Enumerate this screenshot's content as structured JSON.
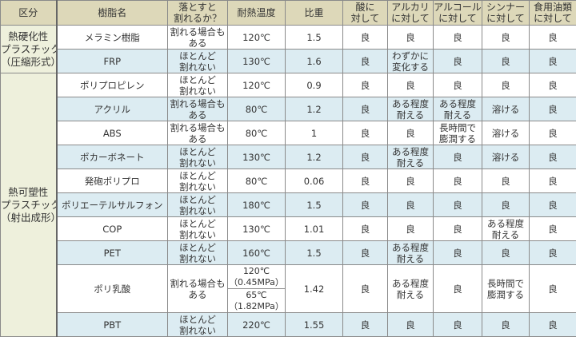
{
  "colors": {
    "header_bg": "#ddd8b9",
    "category_bg": "#eef0dc",
    "alt_row_bg": "#dcecf2",
    "row_bg": "#ffffff"
  },
  "headers": [
    [
      "区分"
    ],
    [
      "樹脂名"
    ],
    [
      "落とすと",
      "割れるか？"
    ],
    [
      "耐熱温度"
    ],
    [
      "比重"
    ],
    [
      "酸に",
      "対して"
    ],
    [
      "アルカリ",
      "に対して"
    ],
    [
      "アルコール",
      "に対して"
    ],
    [
      "シンナー",
      "に対して"
    ],
    [
      "食用油類",
      "に対して"
    ]
  ],
  "categories": [
    {
      "label": [
        "熱硬化性",
        "プラスチック",
        "（圧縮形式）"
      ]
    },
    {
      "label": [
        "熱可塑性",
        "プラスチック",
        "（射出成形）"
      ]
    }
  ],
  "rows": [
    {
      "cat": 0,
      "name": "メラミン樹脂",
      "drop": [
        "割れる場合も",
        "ある"
      ],
      "temp": [
        [
          "120℃"
        ]
      ],
      "sg": "1.5",
      "acid": [
        "良"
      ],
      "alkali": [
        "良"
      ],
      "alcohol": [
        "良"
      ],
      "thinner": [
        "良"
      ],
      "oil": [
        "良"
      ]
    },
    {
      "cat": 0,
      "name": "FRP",
      "drop": [
        "ほとんど",
        "割れない"
      ],
      "temp": [
        [
          "130℃"
        ]
      ],
      "sg": "1.6",
      "acid": [
        "良"
      ],
      "alkali": [
        "わずかに",
        "変化する"
      ],
      "alcohol": [
        "良"
      ],
      "thinner": [
        "良"
      ],
      "oil": [
        "良"
      ]
    },
    {
      "cat": 1,
      "name": "ポリプロピレン",
      "drop": [
        "ほとんど",
        "割れない"
      ],
      "temp": [
        [
          "120℃"
        ]
      ],
      "sg": "0.9",
      "acid": [
        "良"
      ],
      "alkali": [
        "良"
      ],
      "alcohol": [
        "良"
      ],
      "thinner": [
        "良"
      ],
      "oil": [
        "良"
      ]
    },
    {
      "cat": 1,
      "name": "アクリル",
      "drop": [
        "割れる場合も",
        "ある"
      ],
      "temp": [
        [
          "80℃"
        ]
      ],
      "sg": "1.2",
      "acid": [
        "良"
      ],
      "alkali": [
        "ある程度",
        "耐える"
      ],
      "alcohol": [
        "ある程度",
        "耐える"
      ],
      "thinner": [
        "溶ける"
      ],
      "oil": [
        "良"
      ]
    },
    {
      "cat": 1,
      "name": "ABS",
      "drop": [
        "割れる場合も",
        "ある"
      ],
      "temp": [
        [
          "80℃"
        ]
      ],
      "sg": "1",
      "acid": [
        "良"
      ],
      "alkali": [
        "良"
      ],
      "alcohol": [
        "長時間で",
        "膨潤する"
      ],
      "thinner": [
        "溶ける"
      ],
      "oil": [
        "良"
      ]
    },
    {
      "cat": 1,
      "name": "ポカーボネート",
      "drop": [
        "ほとんど",
        "割れない"
      ],
      "temp": [
        [
          "130℃"
        ]
      ],
      "sg": "1.2",
      "acid": [
        "良"
      ],
      "alkali": [
        "ある程度",
        "耐える"
      ],
      "alcohol": [
        "良"
      ],
      "thinner": [
        "溶ける"
      ],
      "oil": [
        "良"
      ]
    },
    {
      "cat": 1,
      "name": "発砲ポリプロ",
      "drop": [
        "ほとんど",
        "割れない"
      ],
      "temp": [
        [
          "80℃"
        ]
      ],
      "sg": "0.06",
      "acid": [
        "良"
      ],
      "alkali": [
        "良"
      ],
      "alcohol": [
        "良"
      ],
      "thinner": [
        "良"
      ],
      "oil": [
        "良"
      ]
    },
    {
      "cat": 1,
      "name": "ポリエーテルサルフォン",
      "drop": [
        "ほとんど",
        "割れない"
      ],
      "temp": [
        [
          "180℃"
        ]
      ],
      "sg": "1.5",
      "acid": [
        "良"
      ],
      "alkali": [
        "良"
      ],
      "alcohol": [
        "良"
      ],
      "thinner": [
        "良"
      ],
      "oil": [
        "良"
      ]
    },
    {
      "cat": 1,
      "name": "COP",
      "drop": [
        "ほとんど",
        "割れない"
      ],
      "temp": [
        [
          "130℃"
        ]
      ],
      "sg": "1.01",
      "acid": [
        "良"
      ],
      "alkali": [
        "良"
      ],
      "alcohol": [
        "良"
      ],
      "thinner": [
        "ある程度",
        "耐える"
      ],
      "oil": [
        "良"
      ]
    },
    {
      "cat": 1,
      "name": "PET",
      "drop": [
        "ほとんど",
        "割れない"
      ],
      "temp": [
        [
          "160℃"
        ]
      ],
      "sg": "1.5",
      "acid": [
        "良"
      ],
      "alkali": [
        "ある程度",
        "耐える"
      ],
      "alcohol": [
        "良"
      ],
      "thinner": [
        "良"
      ],
      "oil": [
        "良"
      ]
    },
    {
      "cat": 1,
      "name": "ポリ乳酸",
      "drop": [
        "割れる場合も",
        "ある"
      ],
      "temp": [
        [
          "120℃",
          "（0.45MPa）"
        ],
        [
          "65℃",
          "（1.82MPa）"
        ]
      ],
      "sg": "1.42",
      "acid": [
        "良"
      ],
      "alkali": [
        "ある程度",
        "耐える"
      ],
      "alcohol": [
        "良"
      ],
      "thinner": [
        "長時間で",
        "膨潤する"
      ],
      "oil": [
        "良"
      ]
    },
    {
      "cat": 1,
      "name": "PBT",
      "drop": [
        "ほとんど",
        "割れない"
      ],
      "temp": [
        [
          "220℃"
        ]
      ],
      "sg": "1.55",
      "acid": [
        "良"
      ],
      "alkali": [
        "良"
      ],
      "alcohol": [
        "良"
      ],
      "thinner": [
        "良"
      ],
      "oil": [
        "良"
      ]
    }
  ]
}
